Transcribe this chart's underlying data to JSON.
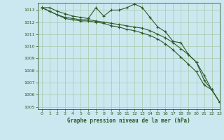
{
  "title": "Graphe pression niveau de la mer (hPa)",
  "bg_color": "#cbe8f0",
  "plot_bg_color": "#cbe8f0",
  "line_color": "#2d5a27",
  "grid_color": "#a8c8a8",
  "xlim": [
    -0.5,
    23
  ],
  "ylim": [
    1004.8,
    1013.6
  ],
  "yticks": [
    1005,
    1006,
    1007,
    1008,
    1009,
    1010,
    1011,
    1012,
    1013
  ],
  "xticks": [
    0,
    1,
    2,
    3,
    4,
    5,
    6,
    7,
    8,
    9,
    10,
    11,
    12,
    13,
    14,
    15,
    16,
    17,
    18,
    19,
    20,
    21,
    22,
    23
  ],
  "series": [
    [
      1013.2,
      1013.2,
      1012.9,
      1012.7,
      1012.5,
      1012.4,
      1012.3,
      1013.2,
      1012.5,
      1013.0,
      1013.0,
      1013.2,
      1013.5,
      1013.2,
      1012.4,
      1011.6,
      1011.2,
      1010.4,
      1010.3,
      1009.3,
      1008.7,
      1007.2,
      1006.4,
      1005.4
    ],
    [
      1013.2,
      1012.9,
      1012.6,
      1012.4,
      1012.3,
      1012.2,
      1012.2,
      1012.1,
      1012.0,
      1011.9,
      1011.8,
      1011.7,
      1011.6,
      1011.5,
      1011.3,
      1011.0,
      1010.7,
      1010.3,
      1009.8,
      1009.3,
      1008.7,
      1007.6,
      1006.4,
      1005.4
    ],
    [
      1013.2,
      1012.9,
      1012.6,
      1012.3,
      1012.2,
      1012.1,
      1012.1,
      1012.0,
      1011.9,
      1011.7,
      1011.6,
      1011.4,
      1011.3,
      1011.1,
      1010.9,
      1010.6,
      1010.2,
      1009.7,
      1009.1,
      1008.5,
      1007.9,
      1006.8,
      1006.4,
      1005.4
    ]
  ]
}
